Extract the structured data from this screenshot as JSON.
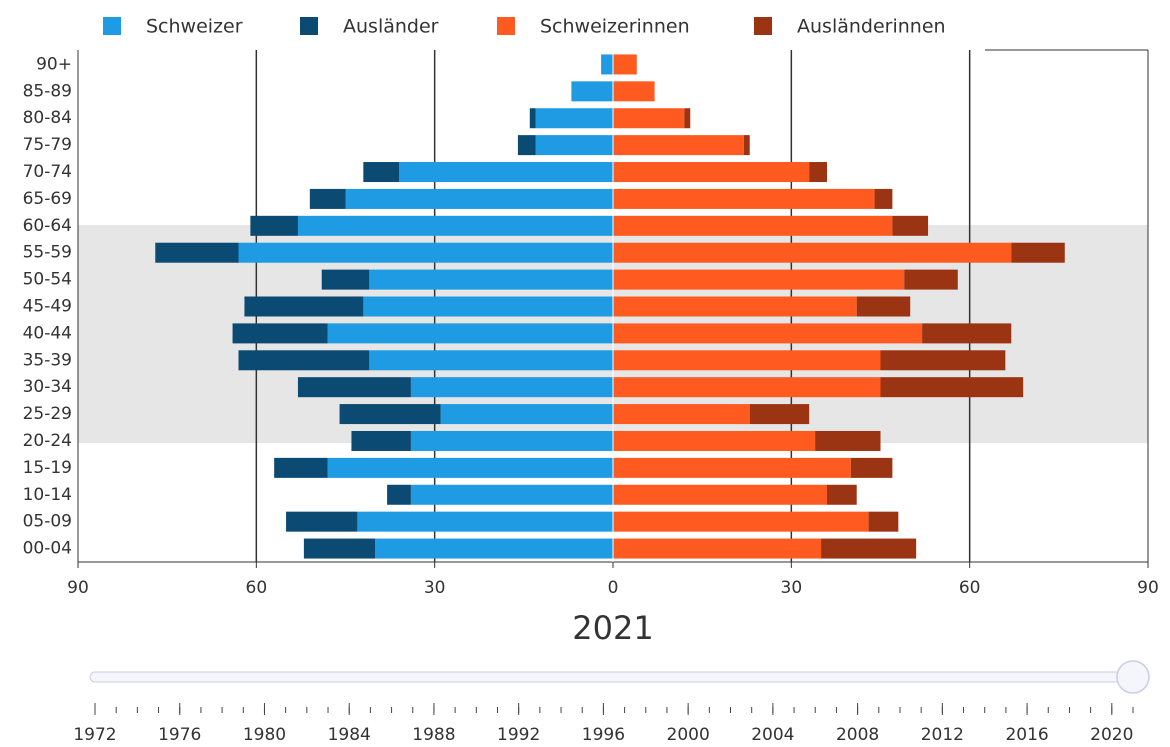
{
  "chart_data": {
    "type": "pyramid",
    "categories": [
      "00-04",
      "05-09",
      "10-14",
      "15-19",
      "20-24",
      "25-29",
      "30-34",
      "35-39",
      "40-44",
      "45-49",
      "50-54",
      "55-59",
      "60-64",
      "65-69",
      "70-74",
      "75-79",
      "80-84",
      "85-89",
      "90+"
    ],
    "series": [
      {
        "name": "Schweizer",
        "color": "#1e9be3",
        "side": "left",
        "values": [
          -40,
          -43,
          -34,
          -48,
          -34,
          -29,
          -34,
          -41,
          -48,
          -42,
          -41,
          -63,
          -53,
          -45,
          -36,
          -13,
          -13,
          -7,
          -2
        ]
      },
      {
        "name": "Ausländer",
        "color": "#0b4a72",
        "side": "left",
        "values": [
          -12,
          -12,
          -4,
          -9,
          -10,
          -17,
          -19,
          -22,
          -16,
          -20,
          -8,
          -14,
          -8,
          -6,
          -6,
          -3,
          -1,
          0,
          0
        ]
      },
      {
        "name": "Schweizerinnen",
        "color": "#ff5a1f",
        "side": "right",
        "values": [
          35,
          43,
          36,
          40,
          34,
          23,
          45,
          45,
          52,
          41,
          49,
          67,
          47,
          44,
          33,
          22,
          12,
          7,
          4
        ]
      },
      {
        "name": "Ausländerinnen",
        "color": "#9a3412",
        "side": "right",
        "values": [
          16,
          5,
          5,
          7,
          11,
          10,
          24,
          21,
          15,
          9,
          9,
          9,
          6,
          3,
          3,
          1,
          1,
          0,
          0
        ]
      }
    ],
    "xlim": [
      -90,
      90
    ],
    "xticks": [
      {
        "value": -90,
        "label": "90"
      },
      {
        "value": -60,
        "label": "60"
      },
      {
        "value": -30,
        "label": "30"
      },
      0,
      30,
      60,
      90
    ],
    "grid": true,
    "year": 2021,
    "slider": {
      "min": 1972,
      "max": 2021,
      "value": 2021,
      "ticks": [
        1972,
        1976,
        1980,
        1984,
        1988,
        1992,
        1996,
        2000,
        2004,
        2008,
        2012,
        2016,
        2020
      ]
    }
  }
}
